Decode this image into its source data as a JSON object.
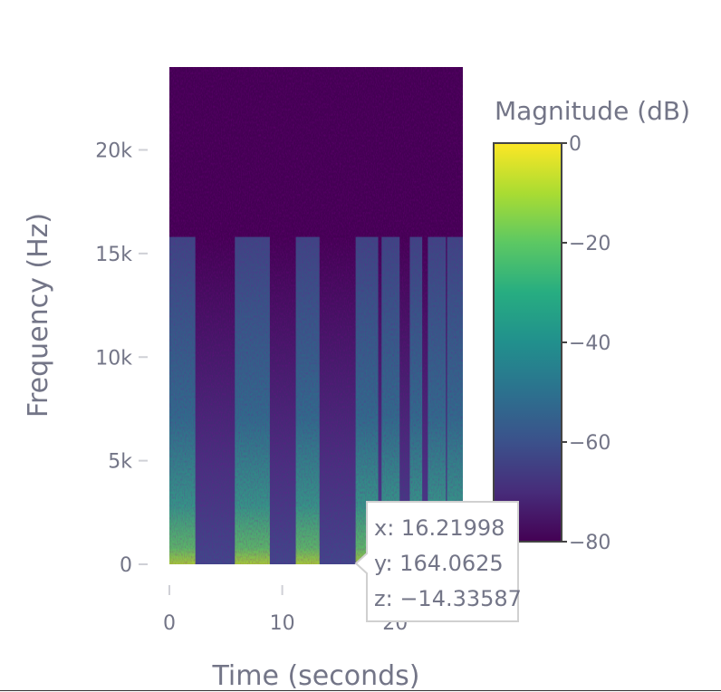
{
  "chart_data": {
    "type": "heatmap",
    "title": "",
    "xlabel": "Time (seconds)",
    "ylabel": "Frequency (Hz)",
    "xlim": [
      0,
      26
    ],
    "ylim": [
      0,
      24000
    ],
    "x_ticks": [
      0,
      10,
      20
    ],
    "x_tick_labels": [
      "0",
      "10",
      "20"
    ],
    "y_ticks": [
      0,
      5000,
      10000,
      15000,
      20000
    ],
    "y_tick_labels": [
      "0",
      "5k",
      "10k",
      "15k",
      "20k"
    ],
    "signal_cutoff_hz": 15800,
    "active_segments_seconds": [
      [
        0,
        2.3
      ],
      [
        5.8,
        8.9
      ],
      [
        11.2,
        13.3
      ],
      [
        16.5,
        18.5
      ],
      [
        18.8,
        20.4
      ],
      [
        21.3,
        22.4
      ],
      [
        22.9,
        24.5
      ],
      [
        24.6,
        26
      ]
    ],
    "colorscale": "Viridis",
    "colorbar": {
      "title": "Magnitude (dB)",
      "range": [
        -80,
        0
      ],
      "ticks": [
        0,
        -20,
        -40,
        -60,
        -80
      ],
      "tick_labels": [
        "0",
        "−20",
        "−40",
        "−60",
        "−80"
      ]
    },
    "hover": {
      "x": "x: 16.21998",
      "y": "y: 164.0625",
      "z": "z: −14.33587",
      "x_value": 16.21998,
      "y_value": 164.0625,
      "z_value": -14.33587
    }
  }
}
